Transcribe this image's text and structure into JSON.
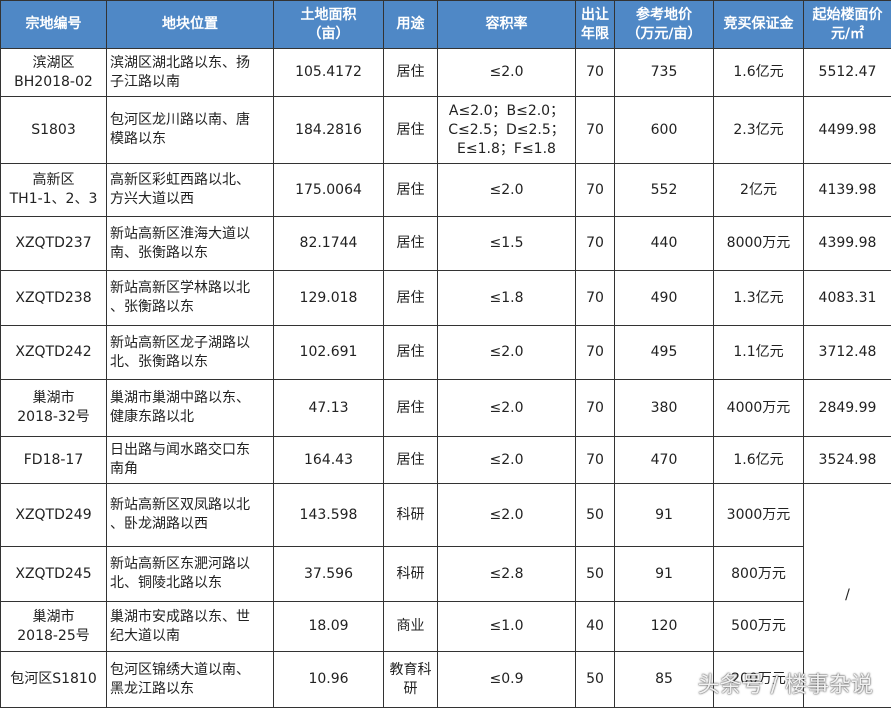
{
  "table": {
    "header": [
      [
        "宗地编号"
      ],
      [
        "地块位置"
      ],
      [
        "土地面积",
        "（亩）"
      ],
      [
        "用途"
      ],
      [
        "容积率"
      ],
      [
        "出让",
        "年限"
      ],
      [
        "参考地价",
        "（万元/亩）"
      ],
      [
        "竞买保证金"
      ],
      [
        "起始楼面价",
        "元/㎡"
      ]
    ],
    "rows": [
      [
        [
          "滨湖区",
          "BH2018-02"
        ],
        [
          "滨湖区湖北路以东、扬",
          "子江路以南"
        ],
        "105.4172",
        "居住",
        "≤2.0",
        "70",
        "735",
        "1.6亿元",
        "5512.47"
      ],
      [
        [
          "S1803"
        ],
        [
          "包河区龙川路以南、唐",
          "模路以东"
        ],
        "184.2816",
        "居住",
        [
          "A≤2.0；B≤2.0；",
          "C≤2.5；D≤2.5；",
          "E≤1.8；F≤1.8"
        ],
        "70",
        "600",
        "2.3亿元",
        "4499.98"
      ],
      [
        [
          "高新区",
          "TH1-1、2、3"
        ],
        [
          "高新区彩虹西路以北、",
          "方兴大道以西"
        ],
        "175.0064",
        "居住",
        "≤2.0",
        "70",
        "552",
        "2亿元",
        "4139.98"
      ],
      [
        [
          "XZQTD237"
        ],
        [
          "新站高新区淮海大道以",
          "南、张衡路以东"
        ],
        "82.1744",
        "居住",
        "≤1.5",
        "70",
        "440",
        "8000万元",
        "4399.98"
      ],
      [
        [
          "XZQTD238"
        ],
        [
          "新站高新区学林路以北",
          "、张衡路以东"
        ],
        "129.018",
        "居住",
        "≤1.8",
        "70",
        "490",
        "1.3亿元",
        "4083.31"
      ],
      [
        [
          "XZQTD242"
        ],
        [
          "新站高新区龙子湖路以",
          "北、张衡路以东"
        ],
        "102.691",
        "居住",
        "≤2.0",
        "70",
        "495",
        "1.1亿元",
        "3712.48"
      ],
      [
        [
          "巢湖市",
          "2018-32号"
        ],
        [
          "巢湖市巢湖中路以东、",
          "健康东路以北"
        ],
        "47.13",
        "居住",
        "≤2.0",
        "70",
        "380",
        "4000万元",
        "2849.99"
      ],
      [
        [
          "FD18-17"
        ],
        [
          "日出路与闻水路交口东",
          "南角"
        ],
        "164.43",
        "居住",
        "≤2.0",
        "70",
        "470",
        "1.6亿元",
        "3524.98"
      ],
      [
        [
          "XZQTD249"
        ],
        [
          "新站高新区双凤路以北",
          "、卧龙湖路以西"
        ],
        "143.598",
        "科研",
        "≤2.0",
        "50",
        "91",
        "3000万元",
        "/"
      ],
      [
        [
          "XZQTD245"
        ],
        [
          "新站高新区东淝河路以",
          "北、铜陵北路以东"
        ],
        "37.596",
        "科研",
        "≤2.8",
        "50",
        "91",
        "800万元"
      ],
      [
        [
          "巢湖市",
          "2018-25号"
        ],
        [
          "巢湖市安成路以东、世",
          "纪大道以南"
        ],
        "18.09",
        "商业",
        "≤1.0",
        "40",
        "120",
        "500万元"
      ],
      [
        [
          "包河区S1810"
        ],
        [
          "包河区锦绣大道以南、",
          "黑龙江路以东"
        ],
        "10.96",
        [
          "教育科",
          "研"
        ],
        "≤0.9",
        "50",
        "85",
        "200万元"
      ]
    ]
  },
  "watermark": "头条号 / 楼事杂说"
}
